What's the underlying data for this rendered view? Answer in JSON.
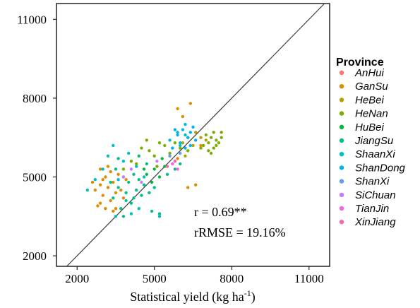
{
  "chart_data": {
    "type": "scatter",
    "title": "",
    "xlabel_main": "Statistical yield (kg ha",
    "xlabel_sup": "-1",
    "xlabel_close": ")",
    "ylabel": "",
    "xlim": [
      1200,
      11800
    ],
    "ylim": [
      1600,
      11600
    ],
    "x_ticks": [
      2000,
      5000,
      8000,
      11000
    ],
    "y_ticks": [
      2000,
      5000,
      8000,
      11000
    ],
    "grid": false,
    "reference_line": "1:1",
    "annotations": [
      "r = 0.69**",
      "rRMSE = 19.16%"
    ],
    "legend": {
      "title": "Province",
      "placement": "right",
      "entries": [
        {
          "name": "AnHui",
          "color": "#F8766D"
        },
        {
          "name": "GanSu",
          "color": "#DE8C00"
        },
        {
          "name": "HeBei",
          "color": "#B79F00"
        },
        {
          "name": "HeNan",
          "color": "#7CAE00"
        },
        {
          "name": "HuBei",
          "color": "#00BA38"
        },
        {
          "name": "JiangSu",
          "color": "#00C08B"
        },
        {
          "name": "ShaanXi",
          "color": "#00BFC4"
        },
        {
          "name": "ShanDong",
          "color": "#00B4F0"
        },
        {
          "name": "ShanXi",
          "color": "#619CFF"
        },
        {
          "name": "SiChuan",
          "color": "#C77CFF"
        },
        {
          "name": "TianJin",
          "color": "#F564E3"
        },
        {
          "name": "XinJiang",
          "color": "#FF64B0"
        }
      ]
    },
    "series": [
      {
        "name": "GanSu",
        "points": [
          [
            2700,
            4500
          ],
          [
            2900,
            4700
          ],
          [
            3000,
            4300
          ],
          [
            3100,
            5000
          ],
          [
            3200,
            4600
          ],
          [
            3300,
            5200
          ],
          [
            3400,
            4800
          ],
          [
            3500,
            4400
          ],
          [
            3300,
            4100
          ],
          [
            2800,
            3900
          ],
          [
            3600,
            5100
          ],
          [
            3700,
            4500
          ],
          [
            3100,
            3800
          ],
          [
            3400,
            3700
          ],
          [
            2900,
            4000
          ],
          [
            3800,
            4200
          ],
          [
            3900,
            4900
          ],
          [
            2600,
            4800
          ],
          [
            2900,
            5300
          ],
          [
            3200,
            5400
          ],
          [
            5900,
            7600
          ],
          [
            6400,
            7800
          ],
          [
            6100,
            7300
          ],
          [
            6600,
            4700
          ],
          [
            6300,
            4600
          ],
          [
            5900,
            5700
          ],
          [
            6300,
            6500
          ],
          [
            6800,
            6200
          ],
          [
            3000,
            4900
          ],
          [
            3500,
            3800
          ]
        ]
      },
      {
        "name": "HeBei",
        "points": [
          [
            6100,
            6300
          ],
          [
            6500,
            6200
          ],
          [
            6800,
            6500
          ],
          [
            6200,
            5800
          ],
          [
            7000,
            6400
          ],
          [
            6600,
            6700
          ]
        ]
      },
      {
        "name": "HeNan",
        "points": [
          [
            6900,
            6200
          ],
          [
            7100,
            6300
          ],
          [
            7200,
            6500
          ],
          [
            7300,
            6100
          ],
          [
            7400,
            6400
          ],
          [
            7000,
            6600
          ],
          [
            7500,
            6300
          ],
          [
            7300,
            6700
          ],
          [
            7600,
            6500
          ],
          [
            6800,
            6100
          ],
          [
            7100,
            6000
          ],
          [
            7400,
            6200
          ],
          [
            4500,
            6100
          ],
          [
            4800,
            6000
          ],
          [
            5000,
            5800
          ],
          [
            5200,
            6300
          ],
          [
            5400,
            6200
          ],
          [
            4700,
            6400
          ],
          [
            3800,
            5300
          ],
          [
            4100,
            5600
          ],
          [
            5100,
            5400
          ],
          [
            5600,
            5900
          ],
          [
            6000,
            6100
          ],
          [
            6300,
            6000
          ],
          [
            5800,
            6300
          ],
          [
            7600,
            6700
          ],
          [
            7200,
            5900
          ],
          [
            4300,
            5500
          ]
        ]
      },
      {
        "name": "HuBei",
        "points": [
          [
            4700,
            5100
          ],
          [
            5000,
            5300
          ],
          [
            5200,
            5000
          ],
          [
            4900,
            4800
          ],
          [
            5400,
            5400
          ],
          [
            5300,
            5700
          ],
          [
            4600,
            5300
          ]
        ]
      },
      {
        "name": "JiangSu",
        "points": [
          [
            3400,
            4200
          ],
          [
            3600,
            4600
          ],
          [
            3800,
            5000
          ],
          [
            3900,
            4400
          ],
          [
            4000,
            4800
          ],
          [
            4200,
            5100
          ],
          [
            4300,
            4500
          ],
          [
            4400,
            4900
          ],
          [
            4500,
            4300
          ],
          [
            4600,
            4700
          ],
          [
            3500,
            5300
          ],
          [
            3700,
            3800
          ],
          [
            4100,
            4000
          ],
          [
            4800,
            4400
          ],
          [
            5000,
            4600
          ],
          [
            4700,
            5500
          ],
          [
            5500,
            5100
          ],
          [
            5800,
            5300
          ],
          [
            6000,
            5500
          ],
          [
            3300,
            4800
          ],
          [
            4900,
            3700
          ],
          [
            5200,
            3600
          ],
          [
            3800,
            3500
          ],
          [
            4200,
            4200
          ],
          [
            3600,
            5700
          ],
          [
            4400,
            5800
          ]
        ]
      },
      {
        "name": "ShaanXi",
        "points": [
          [
            2400,
            4500
          ],
          [
            2700,
            4900
          ],
          [
            3000,
            5300
          ],
          [
            3200,
            5800
          ],
          [
            3400,
            6200
          ],
          [
            3600,
            4900
          ],
          [
            3800,
            5600
          ],
          [
            4000,
            5900
          ],
          [
            3900,
            4100
          ],
          [
            4300,
            5400
          ],
          [
            4600,
            5000
          ],
          [
            3500,
            3500
          ],
          [
            4100,
            3600
          ],
          [
            4400,
            3800
          ],
          [
            5200,
            3500
          ],
          [
            5600,
            6400
          ],
          [
            5900,
            6700
          ],
          [
            6200,
            6600
          ],
          [
            6000,
            6200
          ]
        ]
      },
      {
        "name": "ShanDong",
        "points": [
          [
            5900,
            6600
          ],
          [
            6100,
            6800
          ],
          [
            6300,
            6500
          ],
          [
            6500,
            6900
          ],
          [
            6000,
            6300
          ],
          [
            6200,
            6100
          ],
          [
            6400,
            6700
          ],
          [
            5800,
            6800
          ],
          [
            6600,
            6400
          ],
          [
            5700,
            6100
          ],
          [
            6200,
            7000
          ],
          [
            6400,
            6200
          ]
        ]
      },
      {
        "name": "ShanXi",
        "points": [
          [
            5600,
            5800
          ],
          [
            5800,
            5600
          ],
          [
            6000,
            5900
          ]
        ]
      },
      {
        "name": "SiChuan",
        "points": [
          [
            3800,
            5000
          ],
          [
            4100,
            5300
          ],
          [
            4500,
            4800
          ],
          [
            5100,
            5600
          ]
        ]
      },
      {
        "name": "TianJin",
        "points": [
          [
            5700,
            5500
          ],
          [
            5900,
            5300
          ]
        ]
      },
      {
        "name": "XinJiang",
        "points": [
          [
            5500,
            5400
          ],
          [
            5800,
            5600
          ]
        ]
      }
    ]
  }
}
